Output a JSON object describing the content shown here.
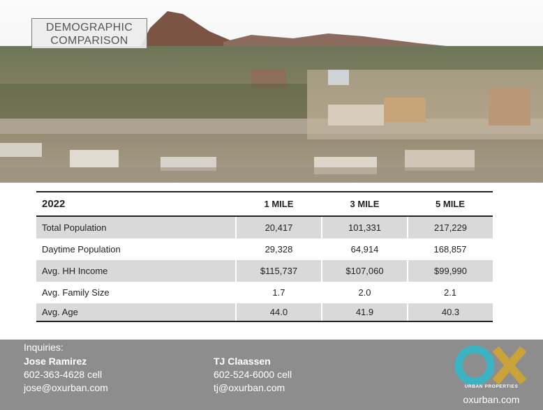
{
  "header": {
    "title_lines": [
      "DEMOGRAPHIC",
      "COMPARISON"
    ]
  },
  "table": {
    "columns": [
      "2022",
      "1 MILE",
      "3 MILE",
      "5 MILE"
    ],
    "rows": [
      [
        "Total Population",
        "20,417",
        "101,331",
        "217,229"
      ],
      [
        "Daytime Population",
        "29,328",
        "64,914",
        "168,857"
      ],
      [
        "Avg. HH Income",
        "$115,737",
        "$107,060",
        "$99,990"
      ],
      [
        "Avg. Family Size",
        "1.7",
        "2.0",
        "2.1"
      ],
      [
        "Avg. Age",
        "44.0",
        "41.9",
        "40.3"
      ]
    ]
  },
  "footer": {
    "inquiries": "Inquiries:",
    "contacts": [
      {
        "name": "Jose Ramirez",
        "phone": "602-363-4628 cell",
        "email": "jose@oxurban.com"
      },
      {
        "name": "TJ Claassen",
        "phone": "602-524-6000 cell",
        "email": "tj@oxurban.com"
      }
    ],
    "logo_text": "URBAN PROPERTIES",
    "website": "oxurban.com"
  }
}
